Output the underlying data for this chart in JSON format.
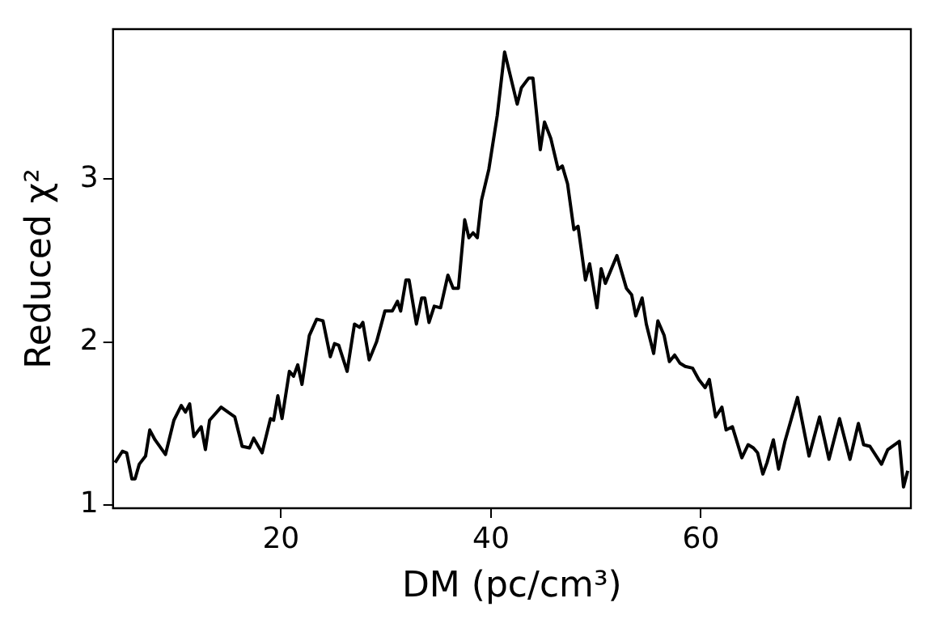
{
  "chart_data": {
    "type": "line",
    "xlabel": "DM (pc/cm³)",
    "ylabel": "Reduced χ²",
    "xlim": [
      4,
      80
    ],
    "xticks": [
      20,
      40,
      60
    ],
    "ylim": [
      0.98,
      3.92
    ],
    "yticks": [
      1,
      2,
      3
    ],
    "grid": false,
    "legend": false,
    "marker": "none",
    "line_style": "solid",
    "series": [
      {
        "color": "#000000",
        "x": [
          4.2,
          4.9,
          5.3,
          5.8,
          6.1,
          6.5,
          7.1,
          7.5,
          8.0,
          9.0,
          9.8,
          10.5,
          10.9,
          11.3,
          11.7,
          12.4,
          12.8,
          13.2,
          14.3,
          15.6,
          16.3,
          17.0,
          17.4,
          18.2,
          19.0,
          19.3,
          19.7,
          20.1,
          20.8,
          21.2,
          21.6,
          22.0,
          22.7,
          23.4,
          24.0,
          24.7,
          25.1,
          25.5,
          26.3,
          27.0,
          27.5,
          27.8,
          28.4,
          29.1,
          29.9,
          30.6,
          31.1,
          31.4,
          31.9,
          32.2,
          32.9,
          33.4,
          33.7,
          34.1,
          34.6,
          35.2,
          35.9,
          36.4,
          36.9,
          37.5,
          37.9,
          38.3,
          38.7,
          39.1,
          39.8,
          40.6,
          41.3,
          42.5,
          42.9,
          43.6,
          44.0,
          44.7,
          45.1,
          45.7,
          46.4,
          46.8,
          47.3,
          47.9,
          48.3,
          49.0,
          49.4,
          50.1,
          50.5,
          50.9,
          52.0,
          52.9,
          53.4,
          53.8,
          54.4,
          54.8,
          55.5,
          55.9,
          56.5,
          57.0,
          57.5,
          58.0,
          58.5,
          59.2,
          59.8,
          60.4,
          60.8,
          61.4,
          62.0,
          62.4,
          63.0,
          63.9,
          64.5,
          65.0,
          65.4,
          65.9,
          66.3,
          66.9,
          67.4,
          68.0,
          69.2,
          70.3,
          71.3,
          72.2,
          73.2,
          74.2,
          75.0,
          75.5,
          76.1,
          77.2,
          77.8,
          78.9,
          79.3,
          79.7
        ],
        "values": [
          1.26,
          1.33,
          1.32,
          1.16,
          1.16,
          1.25,
          1.3,
          1.46,
          1.4,
          1.31,
          1.52,
          1.61,
          1.57,
          1.62,
          1.42,
          1.48,
          1.34,
          1.52,
          1.6,
          1.54,
          1.36,
          1.35,
          1.41,
          1.32,
          1.53,
          1.52,
          1.67,
          1.53,
          1.82,
          1.79,
          1.86,
          1.74,
          2.04,
          2.14,
          2.13,
          1.91,
          1.99,
          1.98,
          1.82,
          2.11,
          2.09,
          2.12,
          1.89,
          2.0,
          2.19,
          2.19,
          2.25,
          2.19,
          2.38,
          2.38,
          2.11,
          2.27,
          2.27,
          2.12,
          2.22,
          2.21,
          2.41,
          2.33,
          2.33,
          2.75,
          2.64,
          2.67,
          2.64,
          2.87,
          3.06,
          3.39,
          3.78,
          3.46,
          3.56,
          3.62,
          3.62,
          3.18,
          3.35,
          3.25,
          3.06,
          3.08,
          2.97,
          2.69,
          2.71,
          2.38,
          2.48,
          2.21,
          2.45,
          2.36,
          2.53,
          2.33,
          2.29,
          2.16,
          2.27,
          2.11,
          1.93,
          2.13,
          2.04,
          1.88,
          1.92,
          1.87,
          1.85,
          1.84,
          1.77,
          1.72,
          1.77,
          1.54,
          1.6,
          1.46,
          1.48,
          1.29,
          1.37,
          1.35,
          1.32,
          1.19,
          1.26,
          1.4,
          1.22,
          1.39,
          1.66,
          1.3,
          1.54,
          1.28,
          1.53,
          1.28,
          1.5,
          1.37,
          1.36,
          1.25,
          1.34,
          1.39,
          1.11,
          1.21
        ]
      }
    ]
  }
}
